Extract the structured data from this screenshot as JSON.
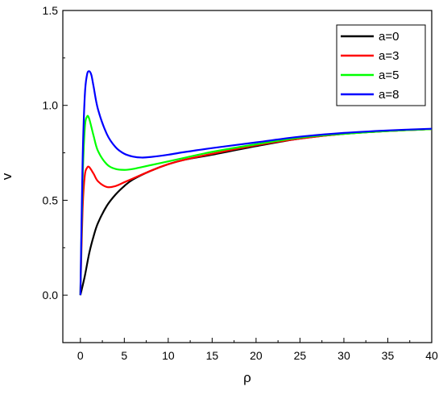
{
  "chart_data": {
    "type": "line",
    "xlabel": "ρ",
    "ylabel": "v",
    "xlim": [
      -2,
      40
    ],
    "ylim": [
      -0.25,
      1.5
    ],
    "x_ticks": [
      0,
      5,
      10,
      15,
      20,
      25,
      30,
      35,
      40
    ],
    "x_tick_labels": [
      "0",
      "5",
      "10",
      "15",
      "20",
      "25",
      "30",
      "35",
      "40"
    ],
    "y_ticks": [
      0.0,
      0.5,
      1.0,
      1.5
    ],
    "y_tick_labels": [
      "0.0",
      "0.5",
      "1.0",
      "1.5"
    ],
    "grid": false,
    "legend_position": "top-right",
    "series": [
      {
        "name": "a=0",
        "color": "#000000",
        "x": [
          0,
          0.5,
          1,
          1.5,
          2,
          3,
          4,
          5,
          6,
          8,
          10,
          12,
          15,
          20,
          25,
          30,
          35,
          40
        ],
        "y": [
          0.0,
          0.1,
          0.22,
          0.31,
          0.38,
          0.47,
          0.53,
          0.575,
          0.61,
          0.655,
          0.69,
          0.715,
          0.74,
          0.785,
          0.825,
          0.85,
          0.865,
          0.875
        ]
      },
      {
        "name": "a=3",
        "color": "#ff0000",
        "x": [
          0,
          0.25,
          0.5,
          0.75,
          1,
          1.5,
          2,
          3,
          4,
          5,
          6,
          8,
          10,
          12,
          15,
          20,
          25,
          30,
          35,
          40
        ],
        "y": [
          0.0,
          0.45,
          0.63,
          0.67,
          0.675,
          0.64,
          0.6,
          0.57,
          0.575,
          0.595,
          0.615,
          0.655,
          0.69,
          0.715,
          0.745,
          0.79,
          0.825,
          0.85,
          0.865,
          0.875
        ]
      },
      {
        "name": "a=5",
        "color": "#00ff00",
        "x": [
          0,
          0.25,
          0.5,
          0.75,
          1,
          1.5,
          2,
          3,
          4,
          5,
          6,
          8,
          10,
          12,
          15,
          20,
          25,
          30,
          35,
          40
        ],
        "y": [
          0.0,
          0.6,
          0.88,
          0.94,
          0.93,
          0.84,
          0.76,
          0.69,
          0.665,
          0.66,
          0.665,
          0.685,
          0.705,
          0.725,
          0.755,
          0.795,
          0.83,
          0.85,
          0.865,
          0.875
        ]
      },
      {
        "name": "a=8",
        "color": "#0000ff",
        "x": [
          0,
          0.25,
          0.5,
          0.75,
          1,
          1.25,
          1.5,
          2,
          3,
          4,
          5,
          6,
          7,
          8,
          10,
          12,
          15,
          20,
          25,
          30,
          35,
          40
        ],
        "y": [
          0.0,
          0.7,
          1.05,
          1.16,
          1.18,
          1.16,
          1.1,
          0.98,
          0.85,
          0.78,
          0.745,
          0.73,
          0.725,
          0.728,
          0.74,
          0.755,
          0.775,
          0.805,
          0.835,
          0.855,
          0.868,
          0.877
        ]
      }
    ]
  }
}
